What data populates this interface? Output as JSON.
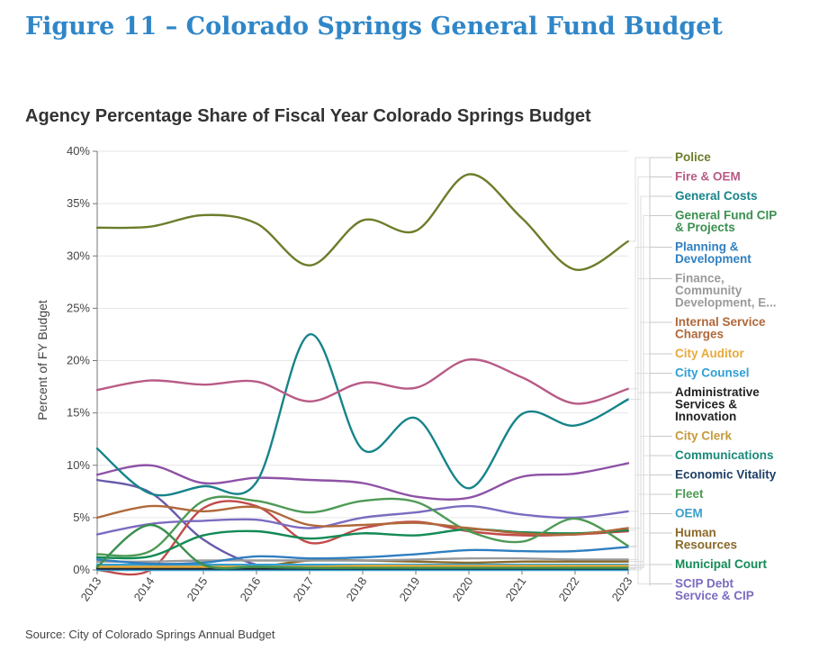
{
  "figure_title": "Figure 11 – Colorado Springs General Fund Budget",
  "source": "Source: City of Colorado Springs Annual Budget",
  "chart_data": {
    "type": "line",
    "title": "Agency Percentage Share of Fiscal Year Colorado Springs Budget",
    "xlabel": "",
    "ylabel": "Percent of FY Budget",
    "x": [
      "2013",
      "2014",
      "2015",
      "2016",
      "2017",
      "2018",
      "2019",
      "2020",
      "2021",
      "2022",
      "2023"
    ],
    "ylim": [
      0,
      40
    ],
    "yticks": [
      "0%",
      "5%",
      "10%",
      "15%",
      "20%",
      "25%",
      "30%",
      "35%",
      "40%"
    ],
    "grid": true,
    "legend_placement": "right",
    "series": [
      {
        "name": "Police",
        "color": "#6b7d2a",
        "values": [
          32.7,
          32.8,
          33.9,
          33.1,
          29.1,
          33.4,
          32.4,
          37.8,
          33.6,
          28.7,
          31.4
        ]
      },
      {
        "name": "Fire & OEM",
        "color": "#b85b86",
        "values": [
          17.2,
          18.1,
          17.7,
          18.0,
          16.1,
          17.9,
          17.4,
          20.1,
          18.4,
          15.9,
          17.3
        ]
      },
      {
        "name": "General Costs",
        "color": "#16848a",
        "values": [
          11.6,
          7.3,
          8.0,
          8.4,
          22.5,
          11.5,
          14.5,
          7.8,
          14.9,
          13.8,
          16.3
        ]
      },
      {
        "name": "General Fund CIP & Projects",
        "color": "#3a8f4f",
        "values": [
          0.3,
          4.3,
          0.5,
          0.3,
          0.2,
          0.2,
          0.2,
          0.2,
          0.2,
          0.2,
          0.2
        ]
      },
      {
        "name": "Planning & Development",
        "color": "#2f7fc0",
        "values": [
          1.0,
          0.6,
          0.7,
          1.3,
          1.1,
          1.2,
          1.5,
          1.9,
          1.8,
          1.8,
          2.2
        ]
      },
      {
        "name": "Finance, Community Development, E...",
        "color": "#9a9a9a",
        "values": [
          0.8,
          0.8,
          0.9,
          0.9,
          0.9,
          0.9,
          1.0,
          1.1,
          1.1,
          1.0,
          1.0
        ]
      },
      {
        "name": "Internal Service Charges",
        "color": "#b0683a",
        "values": [
          5.0,
          6.1,
          5.6,
          6.0,
          4.3,
          4.3,
          4.5,
          4.0,
          3.5,
          3.4,
          4.0
        ]
      },
      {
        "name": "City Auditor",
        "color": "#e8a93a",
        "values": [
          0.3,
          0.3,
          0.3,
          0.3,
          0.3,
          0.4,
          0.4,
          0.4,
          0.4,
          0.4,
          0.4
        ]
      },
      {
        "name": "City Counsel",
        "color": "#2f9fd4",
        "values": [
          0.5,
          0.5,
          0.5,
          0.5,
          0.5,
          0.5,
          0.5,
          0.5,
          0.5,
          0.5,
          0.5
        ]
      },
      {
        "name": "Administrative Services & Innovation",
        "color": "#222222",
        "values": [
          0.2,
          0.2,
          0.2,
          0.2,
          0.2,
          0.2,
          0.2,
          0.2,
          0.2,
          0.2,
          0.2
        ]
      },
      {
        "name": "City Clerk",
        "color": "#c59a3c",
        "values": [
          0.4,
          0.4,
          0.4,
          0.4,
          0.4,
          0.4,
          0.4,
          0.4,
          0.4,
          0.4,
          0.4
        ]
      },
      {
        "name": "Communications",
        "color": "#1b8a7a",
        "values": [
          0.2,
          0.2,
          0.2,
          0.2,
          0.2,
          0.2,
          0.2,
          0.2,
          0.2,
          0.2,
          0.2
        ]
      },
      {
        "name": "Economic Vitality",
        "color": "#1f3f66",
        "values": [
          0.1,
          0.1,
          0.1,
          0.1,
          0.1,
          0.1,
          0.1,
          0.1,
          0.1,
          0.1,
          0.1
        ]
      },
      {
        "name": "Fleet",
        "color": "#4e9a55",
        "values": [
          1.5,
          1.8,
          6.6,
          6.6,
          5.5,
          6.6,
          6.5,
          3.7,
          2.7,
          4.9,
          2.3
        ]
      },
      {
        "name": "OEM",
        "color": "#3a9fc8",
        "values": [
          0.0,
          0.0,
          0.0,
          0.0,
          0.0,
          0.0,
          0.0,
          0.0,
          0.0,
          0.0,
          0.0
        ]
      },
      {
        "name": "Human Resources",
        "color": "#8a6a2a",
        "values": [
          0.3,
          0.3,
          0.3,
          0.3,
          0.9,
          0.9,
          0.8,
          0.7,
          0.8,
          0.8,
          0.8
        ]
      },
      {
        "name": "Municipal Court",
        "color": "#128a55",
        "values": [
          1.2,
          1.3,
          3.3,
          3.7,
          3.0,
          3.5,
          3.3,
          3.9,
          3.6,
          3.5,
          3.8
        ]
      },
      {
        "name": "SCIP Debt Service & CIP",
        "color": "#7c6bc0",
        "values": [
          3.4,
          4.4,
          4.7,
          4.8,
          4.0,
          5.0,
          5.5,
          6.1,
          5.3,
          5.0,
          5.6
        ]
      },
      {
        "name": "",
        "color": "#8e52a6",
        "values": [
          9.1,
          10.0,
          8.3,
          8.8,
          8.6,
          8.3,
          7.0,
          6.9,
          8.9,
          9.2,
          10.2
        ]
      },
      {
        "name": "",
        "color": "#c24a4a",
        "values": [
          0.0,
          0.0,
          5.9,
          6.1,
          2.6,
          4.0,
          4.6,
          3.7,
          3.3,
          3.4,
          3.7
        ]
      },
      {
        "name": "",
        "color": "#6a5aaa",
        "values": [
          8.6,
          7.4,
          2.9,
          0.5,
          0.2,
          0.2,
          0.2,
          0.2,
          0.2,
          0.2,
          0.2
        ]
      }
    ],
    "legend": [
      {
        "lines": [
          "Police"
        ],
        "color": "#6b7d2a"
      },
      {
        "lines": [
          "Fire & OEM"
        ],
        "color": "#b85b86"
      },
      {
        "lines": [
          "General Costs"
        ],
        "color": "#16848a"
      },
      {
        "lines": [
          "General Fund CIP",
          "& Projects"
        ],
        "color": "#3a8f4f"
      },
      {
        "lines": [
          "Planning &",
          "Development"
        ],
        "color": "#2f7fc0"
      },
      {
        "lines": [
          "Finance,",
          "Community",
          "Development, E..."
        ],
        "color": "#9a9a9a"
      },
      {
        "lines": [
          "Internal Service",
          "Charges"
        ],
        "color": "#b0683a"
      },
      {
        "lines": [
          "City Auditor"
        ],
        "color": "#e8a93a"
      },
      {
        "lines": [
          "City Counsel"
        ],
        "color": "#2f9fd4"
      },
      {
        "lines": [
          "Administrative",
          "Services &",
          "Innovation"
        ],
        "color": "#222222"
      },
      {
        "lines": [
          "City Clerk"
        ],
        "color": "#c59a3c"
      },
      {
        "lines": [
          "Communications"
        ],
        "color": "#1b8a7a"
      },
      {
        "lines": [
          "Economic Vitality"
        ],
        "color": "#1f3f66"
      },
      {
        "lines": [
          "Fleet"
        ],
        "color": "#4e9a55"
      },
      {
        "lines": [
          "OEM"
        ],
        "color": "#3a9fc8"
      },
      {
        "lines": [
          "Human",
          "Resources"
        ],
        "color": "#8a6a2a"
      },
      {
        "lines": [
          "Municipal Court"
        ],
        "color": "#128a55"
      },
      {
        "lines": [
          "SCIP Debt",
          "Service & CIP"
        ],
        "color": "#7c6bc0"
      }
    ]
  }
}
